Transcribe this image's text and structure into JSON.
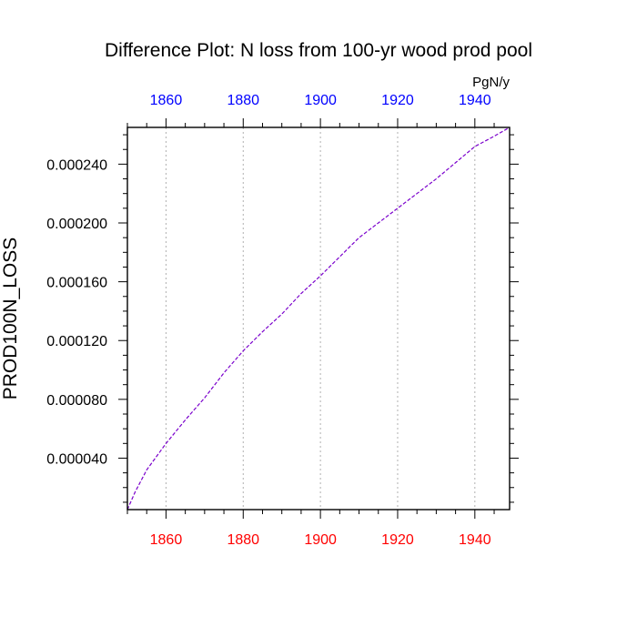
{
  "chart_data": {
    "type": "line",
    "title": "Difference Plot: N loss from 100-yr wood prod pool",
    "units": "PgN/y",
    "ylabel": "PROD100N_LOSS",
    "xlabel": "",
    "xlim": [
      1850,
      1949
    ],
    "ylim": [
      5e-06,
      0.000265
    ],
    "x_ticks": [
      1860,
      1880,
      1900,
      1920,
      1940
    ],
    "x_tick_labels": [
      "1860",
      "1880",
      "1900",
      "1920",
      "1940"
    ],
    "y_ticks": [
      4e-05,
      8e-05,
      0.00012,
      0.00016,
      0.0002,
      0.00024
    ],
    "y_tick_labels": [
      "0.000040",
      "0.000080",
      "0.000120",
      "0.000160",
      "0.000200",
      "0.000240"
    ],
    "grid": "vertical-dashed",
    "colors": {
      "bottom_axis_labels": "#ff0000",
      "top_axis_labels": "#0000ff",
      "line": "#7a00cc",
      "grid": "#b0b0b0"
    },
    "series": [
      {
        "x": [
          1850,
          1852,
          1855,
          1860,
          1865,
          1870,
          1875,
          1880,
          1885,
          1890,
          1895,
          1900,
          1905,
          1910,
          1915,
          1920,
          1925,
          1930,
          1935,
          1940,
          1945,
          1949
        ],
        "values": [
          5e-06,
          1.7e-05,
          3.2e-05,
          5e-05,
          6.6e-05,
          8.1e-05,
          9.8e-05,
          0.000113,
          0.000126,
          0.000138,
          0.000152,
          0.000164,
          0.000177,
          0.00019,
          0.0002,
          0.00021,
          0.00022,
          0.00023,
          0.000241,
          0.000252,
          0.000259,
          0.000265
        ]
      }
    ]
  }
}
